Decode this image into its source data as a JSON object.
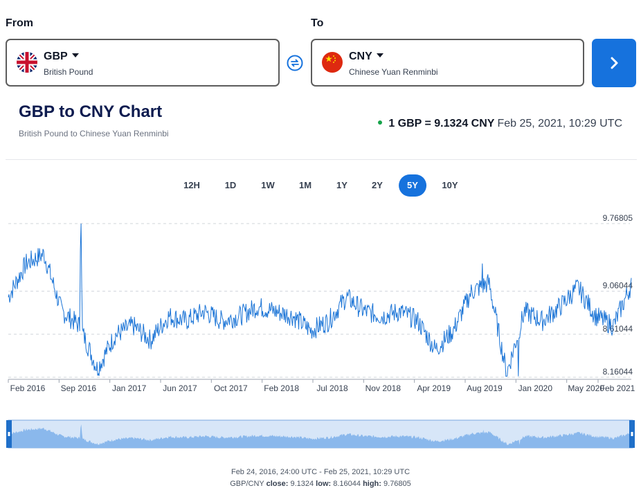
{
  "converter": {
    "from_label": "From",
    "to_label": "To",
    "from": {
      "code": "GBP",
      "name": "British Pound",
      "flag": "uk-flag-icon"
    },
    "to": {
      "code": "CNY",
      "name": "Chinese Yuan Renminbi",
      "flag": "cn-flag-icon"
    },
    "swap_icon": "swap-icon",
    "go_icon": "chevron-right-icon"
  },
  "header": {
    "title": "GBP to CNY Chart",
    "subtitle": "British Pound to Chinese Yuan Renminbi",
    "rate": "1 GBP = 9.1324 CNY",
    "timestamp": "Feb 25, 2021, 10:29 UTC"
  },
  "periods": [
    "12H",
    "1D",
    "1W",
    "1M",
    "1Y",
    "2Y",
    "5Y",
    "10Y"
  ],
  "active_period": "5Y",
  "colors": {
    "accent": "#1672dd",
    "line": "#1b74d6",
    "navigator_fill": "#8ab8ec",
    "navigator_bg": "#d7e6f8",
    "status": "#16a34a"
  },
  "chart_data": {
    "type": "line",
    "title": "GBP to CNY Chart",
    "series": [
      {
        "name": "GBP/CNY",
        "x": [
          "Feb 2016",
          "Apr 2016",
          "Jun 2016",
          "Jul 2016",
          "Sep 2016",
          "Oct 2016",
          "Dec 2016",
          "Jan 2017",
          "Mar 2017",
          "May 2017",
          "Jun 2017",
          "Aug 2017",
          "Oct 2017",
          "Nov 2017",
          "Jan 2018",
          "Mar 2018",
          "May 2018",
          "Jul 2018",
          "Sep 2018",
          "Nov 2018",
          "Dec 2018",
          "Feb 2019",
          "Apr 2019",
          "Jun 2019",
          "Aug 2019",
          "Sep 2019",
          "Nov 2019",
          "Jan 2020",
          "Mar 2020",
          "Apr 2020",
          "May 2020",
          "Jul 2020",
          "Sep 2020",
          "Oct 2020",
          "Dec 2020",
          "Feb 2021"
        ],
        "values": [
          9.0,
          9.35,
          9.45,
          8.85,
          8.7,
          8.25,
          8.6,
          8.7,
          8.55,
          8.8,
          8.75,
          8.85,
          8.75,
          8.8,
          8.9,
          8.85,
          8.8,
          8.65,
          8.75,
          9.0,
          8.85,
          8.8,
          8.85,
          8.75,
          8.45,
          8.65,
          9.05,
          9.15,
          8.2,
          8.85,
          8.75,
          8.9,
          9.1,
          8.8,
          8.7,
          9.13
        ]
      }
    ],
    "ylim": [
      8.16044,
      9.76805
    ],
    "y_ticks": [
      "9.76805",
      "9.06044",
      "8.61044",
      "8.16044"
    ],
    "y_tick_values": [
      9.76805,
      9.06044,
      8.61044,
      8.16044
    ],
    "x_ticks": [
      "Feb 2016",
      "Sep 2016",
      "Jan 2017",
      "Jun 2017",
      "Oct 2017",
      "Feb 2018",
      "Jul 2018",
      "Nov 2018",
      "Apr 2019",
      "Aug 2019",
      "Jan 2020",
      "May 2020",
      "Feb 2021"
    ],
    "close": "9.1324",
    "low": "8.16044",
    "high": "9.76805"
  },
  "footer": {
    "range": "Feb 24, 2016, 24:00 UTC - Feb 25, 2021, 10:29 UTC",
    "pair": "GBP/CNY",
    "close_label": "close:",
    "close": "9.1324",
    "low_label": "low:",
    "low": "8.16044",
    "high_label": "high:",
    "high": "9.76805"
  }
}
